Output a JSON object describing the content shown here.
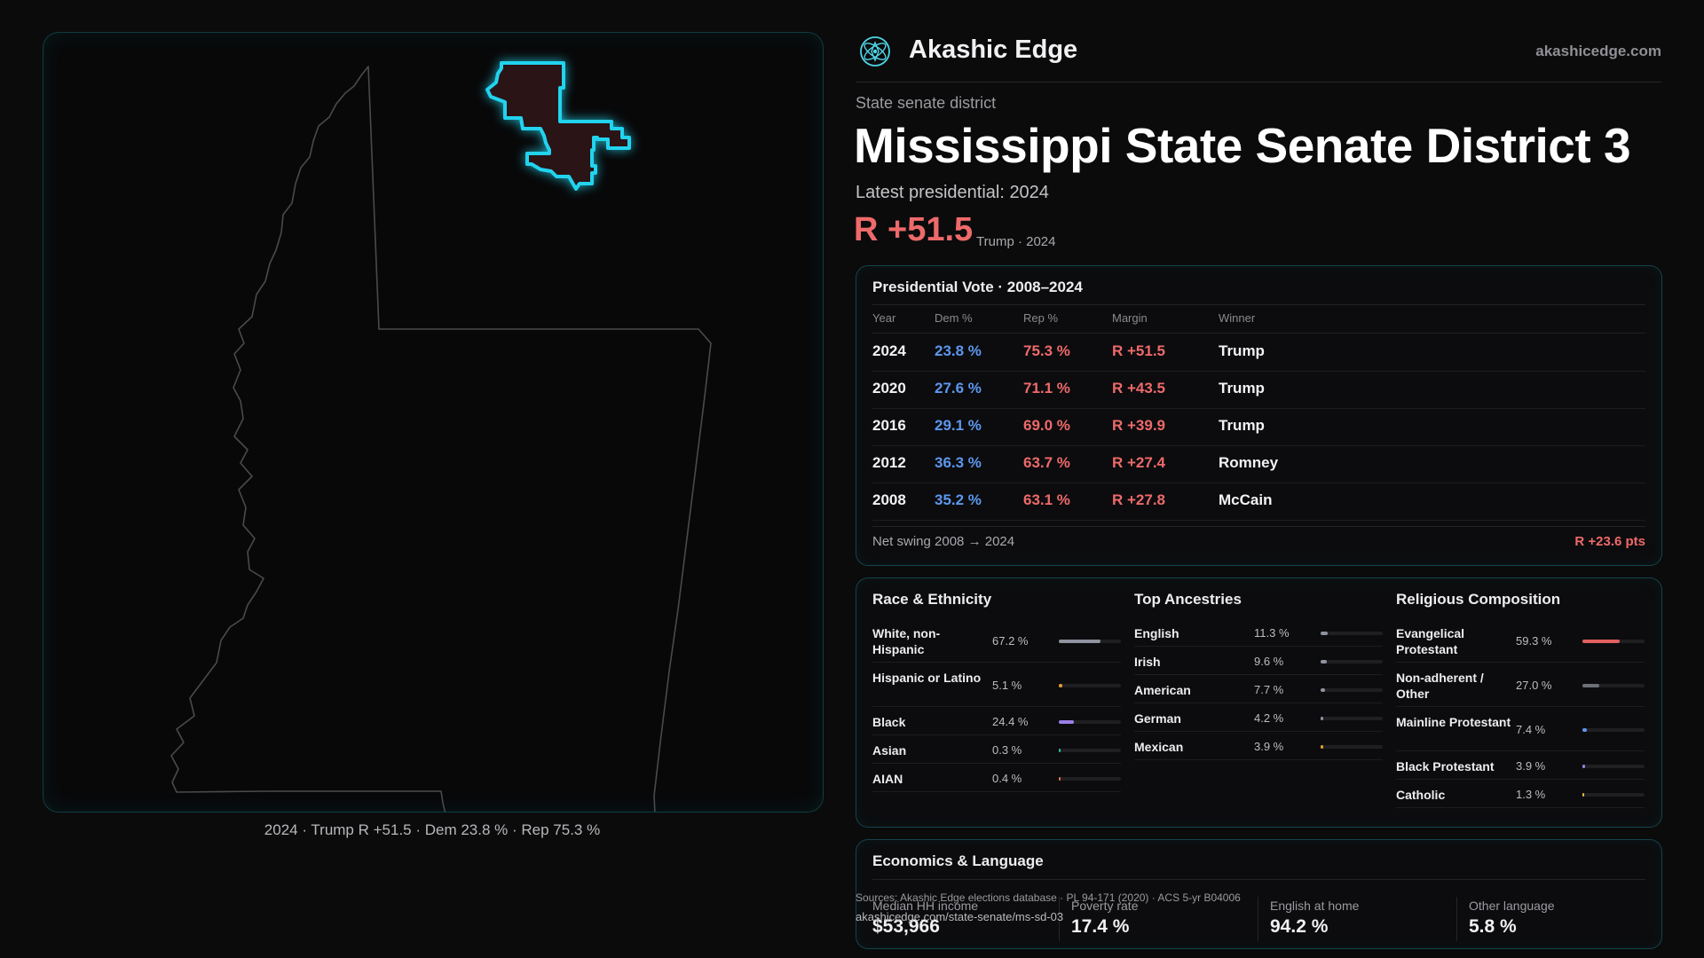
{
  "brand": {
    "name": "Akashic Edge",
    "url": "akashicedge.com",
    "logo_icon": "atom-lotus-icon"
  },
  "header": {
    "eyebrow": "State senate district",
    "title": "Mississippi State Senate District 3",
    "latest_label": "Latest presidential: 2024",
    "margin": "R +51.5",
    "margin_sub": "Trump · 2024"
  },
  "map": {
    "caption": "2024 · Trump R +51.5 · Dem 23.8 % · Rep 75.3 %",
    "highlight_color": "#22d3ee",
    "district_fill": "#2a1416"
  },
  "presidential": {
    "title": "Presidential Vote · 2008–2024",
    "headers": [
      "Year",
      "Dem %",
      "Rep %",
      "Margin",
      "Winner"
    ],
    "rows": [
      {
        "year": "2024",
        "dem": "23.8 %",
        "rep": "75.3 %",
        "margin": "R +51.5",
        "winner": "Trump"
      },
      {
        "year": "2020",
        "dem": "27.6 %",
        "rep": "71.1 %",
        "margin": "R +43.5",
        "winner": "Trump"
      },
      {
        "year": "2016",
        "dem": "29.1 %",
        "rep": "69.0 %",
        "margin": "R +39.9",
        "winner": "Trump"
      },
      {
        "year": "2012",
        "dem": "36.3 %",
        "rep": "63.7 %",
        "margin": "R +27.4",
        "winner": "Romney"
      },
      {
        "year": "2008",
        "dem": "35.2 %",
        "rep": "63.1 %",
        "margin": "R +27.8",
        "winner": "McCain"
      }
    ],
    "net_swing_label": "Net swing 2008 → 2024",
    "net_swing_value": "R +23.6 pts",
    "dem_color": "#5d97ee",
    "rep_color": "#ee6a6a"
  },
  "race": {
    "title": "Race & Ethnicity",
    "items": [
      {
        "label": "White, non-Hispanic",
        "value": "67.2 %",
        "share": 0.672,
        "color": "#8f93a0"
      },
      {
        "label": "Hispanic or Latino",
        "value": "5.1 %",
        "share": 0.051,
        "color": "#e0a030"
      },
      {
        "label": "Black",
        "value": "24.4 %",
        "share": 0.244,
        "color": "#9b7fe8"
      },
      {
        "label": "Asian",
        "value": "0.3 %",
        "share": 0.003,
        "color": "#2fbfa0"
      },
      {
        "label": "AIAN",
        "value": "0.4 %",
        "share": 0.004,
        "color": "#e07050"
      }
    ]
  },
  "ancestry": {
    "title": "Top Ancestries",
    "items": [
      {
        "label": "English",
        "value": "11.3 %",
        "share": 0.113,
        "color": "#8f93a0"
      },
      {
        "label": "Irish",
        "value": "9.6 %",
        "share": 0.096,
        "color": "#8f93a0"
      },
      {
        "label": "American",
        "value": "7.7 %",
        "share": 0.077,
        "color": "#8f93a0"
      },
      {
        "label": "German",
        "value": "4.2 %",
        "share": 0.042,
        "color": "#8f93a0"
      },
      {
        "label": "Mexican",
        "value": "3.9 %",
        "share": 0.039,
        "color": "#e0a030"
      }
    ]
  },
  "religion": {
    "title": "Religious Composition",
    "items": [
      {
        "label": "Evangelical Protestant",
        "value": "59.3 %",
        "share": 0.593,
        "color": "#e06060"
      },
      {
        "label": "Non-adherent / Other",
        "value": "27.0 %",
        "share": 0.27,
        "color": "#6e7078"
      },
      {
        "label": "Mainline Protestant",
        "value": "7.4 %",
        "share": 0.074,
        "color": "#5d97ee"
      },
      {
        "label": "Black Protestant",
        "value": "3.9 %",
        "share": 0.039,
        "color": "#9b7fe8"
      },
      {
        "label": "Catholic",
        "value": "1.3 %",
        "share": 0.013,
        "color": "#e0c030"
      }
    ]
  },
  "economics": {
    "title": "Economics & Language",
    "items": [
      {
        "label": "Median HH income",
        "value": "$53,966"
      },
      {
        "label": "Poverty rate",
        "value": "17.4 %"
      },
      {
        "label": "English at home",
        "value": "94.2 %"
      },
      {
        "label": "Other language",
        "value": "5.8 %"
      }
    ]
  },
  "footer": {
    "sources": "Sources: Akashic Edge elections database · PL 94-171 (2020) · ACS 5-yr B04006",
    "url": "akashicedge.com/state-senate/ms-sd-03"
  }
}
